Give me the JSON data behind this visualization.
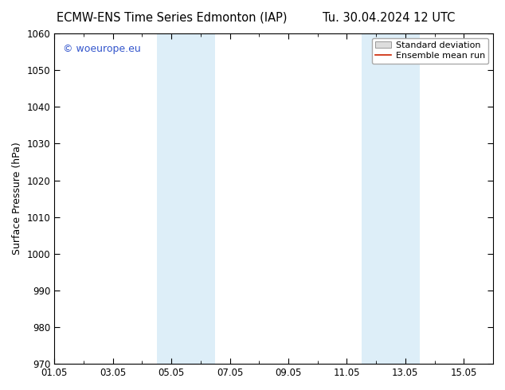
{
  "title_left": "ECMW-ENS Time Series Edmonton (IAP)",
  "title_right": "Tu. 30.04.2024 12 UTC",
  "ylabel": "Surface Pressure (hPa)",
  "ylim": [
    970,
    1060
  ],
  "yticks": [
    970,
    980,
    990,
    1000,
    1010,
    1020,
    1030,
    1040,
    1050,
    1060
  ],
  "xtick_labels": [
    "01.05",
    "03.05",
    "05.05",
    "07.05",
    "09.05",
    "11.05",
    "13.05",
    "15.05"
  ],
  "xtick_positions": [
    0,
    2,
    4,
    6,
    8,
    10,
    12,
    14
  ],
  "xlim": [
    0,
    15
  ],
  "shaded_regions": [
    {
      "x_start": 3.5,
      "x_end": 5.5,
      "color": "#ddeef8"
    },
    {
      "x_start": 10.5,
      "x_end": 12.5,
      "color": "#ddeef8"
    }
  ],
  "watermark_text": "© woeurope.eu",
  "watermark_color": "#3355cc",
  "legend_std_label": "Standard deviation",
  "legend_mean_label": "Ensemble mean run",
  "legend_std_facecolor": "#dddddd",
  "legend_std_edgecolor": "#999999",
  "legend_mean_color": "#cc2200",
  "background_color": "#ffffff",
  "axes_bg_color": "#ffffff",
  "title_fontsize": 10.5,
  "tick_fontsize": 8.5,
  "ylabel_fontsize": 9,
  "watermark_fontsize": 9,
  "legend_fontsize": 8
}
